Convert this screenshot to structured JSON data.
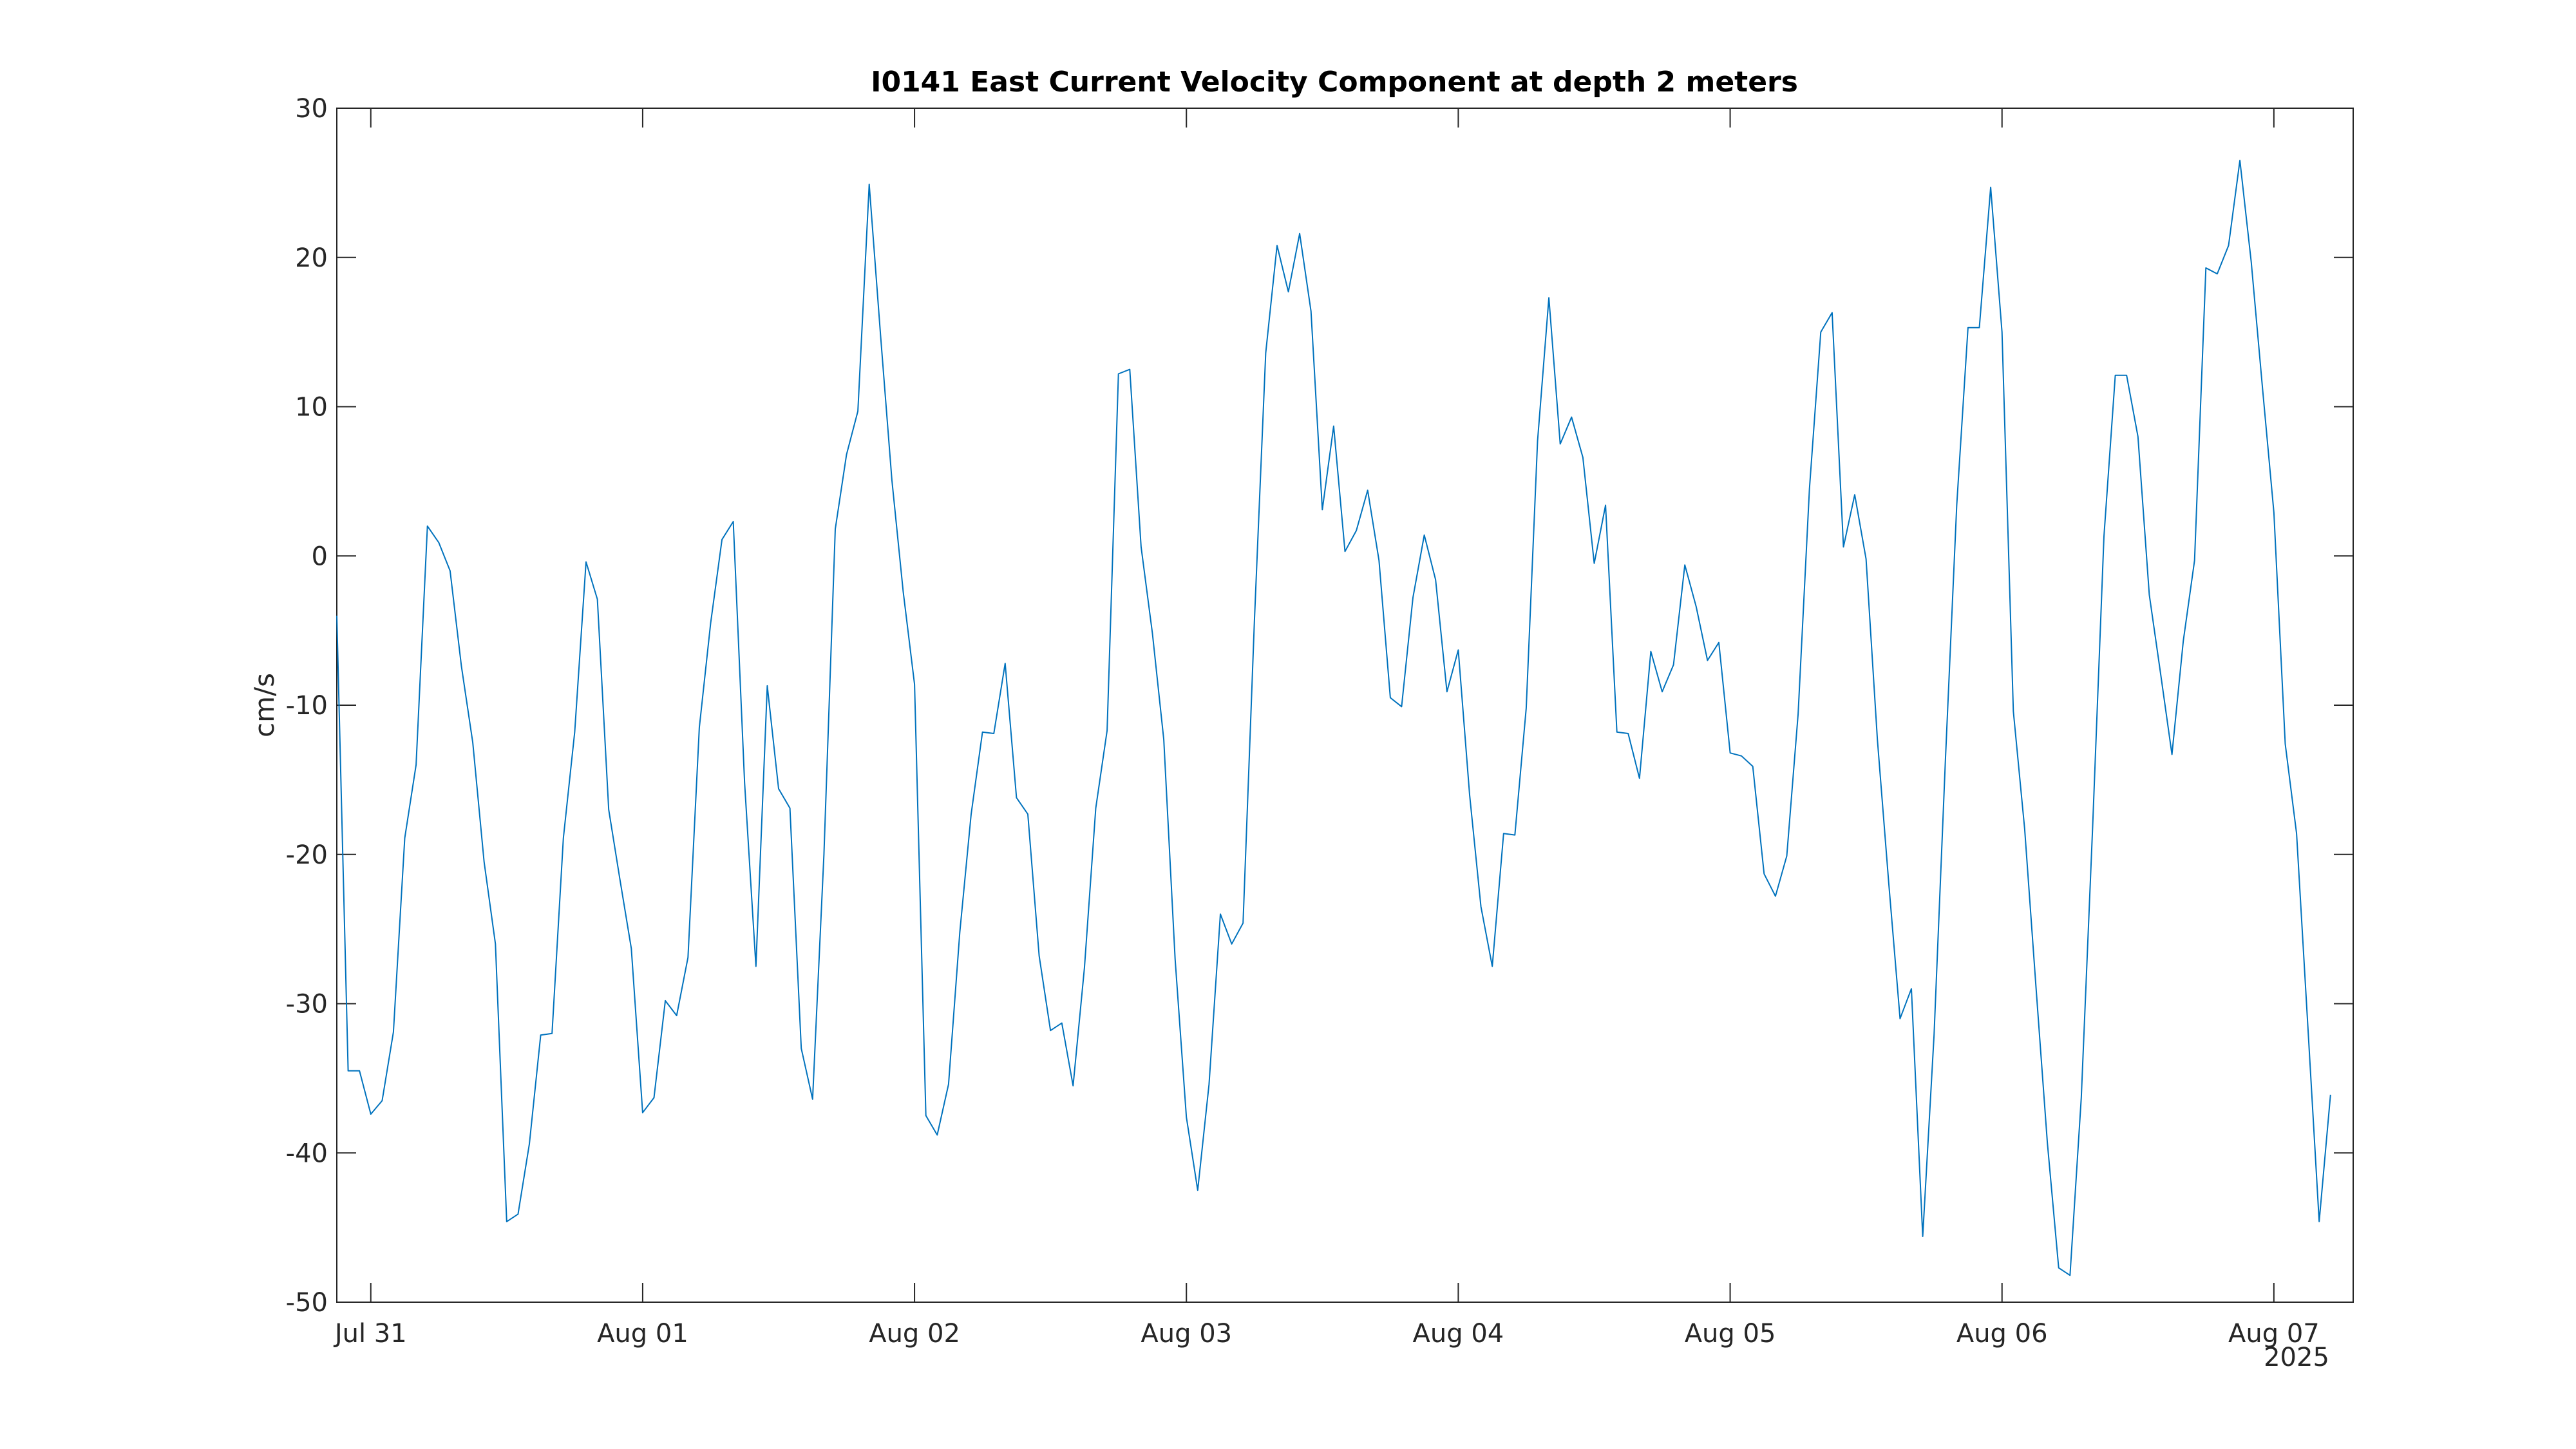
{
  "chart_data": {
    "type": "line",
    "title": "I0141 East Current Velocity Component at depth 2 meters",
    "xlabel": "",
    "ylabel": "cm/s",
    "x_axis": {
      "type": "date",
      "start": "2025-07-30T21:00",
      "end": "2025-08-07T07:00",
      "ticks": [
        {
          "date": "2025-07-31T00:00",
          "label": "Jul 31"
        },
        {
          "date": "2025-08-01T00:00",
          "label": "Aug 01"
        },
        {
          "date": "2025-08-02T00:00",
          "label": "Aug 02"
        },
        {
          "date": "2025-08-03T00:00",
          "label": "Aug 03"
        },
        {
          "date": "2025-08-04T00:00",
          "label": "Aug 04"
        },
        {
          "date": "2025-08-05T00:00",
          "label": "Aug 05"
        },
        {
          "date": "2025-08-06T00:00",
          "label": "Aug 06"
        },
        {
          "date": "2025-08-07T00:00",
          "label": "Aug 07"
        }
      ],
      "secondary_label": "2025"
    },
    "ylim": [
      -50,
      30
    ],
    "yticks": [
      30,
      20,
      10,
      0,
      -10,
      -20,
      -30,
      -40,
      -50
    ],
    "grid": false,
    "color": "#0072BD",
    "series": [
      {
        "start": "2025-07-30T21:00",
        "interval_hours": 1,
        "values": [
          -4,
          -34.5,
          -34.5,
          -37.4,
          -36.5,
          -31.9,
          -18.9,
          -14,
          2,
          0.9,
          -1,
          -7.4,
          -12.5,
          -20.5,
          -26,
          -44.6,
          -44.1,
          -39.4,
          -32.1,
          -32,
          -18.9,
          -11.8,
          -0.4,
          -2.9,
          -17,
          -21.7,
          -26.3,
          -37.3,
          -36.3,
          -29.8,
          -30.8,
          -26.9,
          -11.5,
          -4.5,
          1.1,
          2.3,
          -15.2,
          -27.5,
          -8.7,
          -15.6,
          -16.9,
          -33,
          -36.4,
          -20,
          1.8,
          6.8,
          9.7,
          24.9,
          14.8,
          5.1,
          -2.4,
          -8.6,
          -37.5,
          -38.8,
          -35.4,
          -25.2,
          -17.3,
          -11.8,
          -11.9,
          -7.2,
          -16.2,
          -17.3,
          -26.8,
          -31.8,
          -31.3,
          -35.5,
          -27.6,
          -16.9,
          -11.7,
          12.2,
          12.5,
          0.6,
          -5.2,
          -12.3,
          -27,
          -37.6,
          -42.5,
          -35.4,
          -24,
          -26,
          -24.6,
          -4.4,
          13.6,
          20.8,
          17.7,
          21.6,
          16.4,
          3.1,
          8.7,
          0.3,
          1.7,
          4.4,
          -0.3,
          -9.5,
          -10.1,
          -2.8,
          1.4,
          -1.6,
          -9.1,
          -6.3,
          -16,
          -23.5,
          -27.5,
          -18.6,
          -18.7,
          -10.2,
          7.7,
          17.3,
          7.5,
          9.3,
          6.6,
          -0.5,
          3.4,
          -11.8,
          -11.9,
          -14.9,
          -6.4,
          -9.1,
          -7.3,
          -0.6,
          -3.4,
          -7,
          -5.8,
          -13.2,
          -13.4,
          -14.1,
          -21.3,
          -22.8,
          -20.1,
          -10.6,
          4.5,
          15,
          16.3,
          0.6,
          4.1,
          -0.2,
          -12.3,
          -21.9,
          -31,
          -29,
          -45.6,
          -32.1,
          -13.7,
          3.4,
          15.3,
          15.3,
          24.7,
          15,
          -10.4,
          -18.3,
          -28.9,
          -39.3,
          -47.7,
          -48.2,
          -36.3,
          -18.2,
          1.3,
          12.1,
          12.1,
          8,
          -2.6,
          -7.9,
          -13.3,
          -5.7,
          -0.3,
          19.3,
          18.9,
          20.8,
          26.5,
          19.7,
          11.2,
          2.9,
          -12.6,
          -18.6,
          -31.5,
          -44.6,
          -36.1
        ]
      }
    ]
  }
}
